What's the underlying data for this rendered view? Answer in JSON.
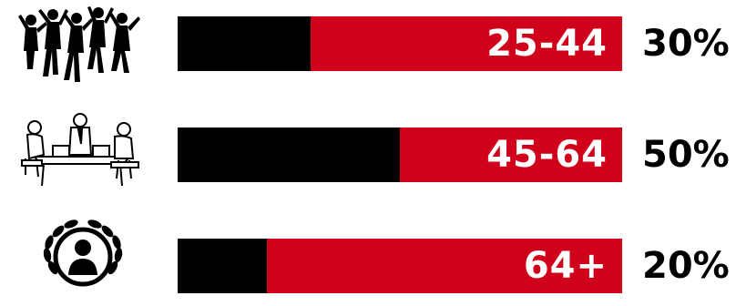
{
  "chart_data": {
    "type": "bar",
    "categories": [
      "25-44",
      "45-64",
      "64+"
    ],
    "values": [
      30,
      50,
      20
    ],
    "value_labels": [
      "30%",
      "50%",
      "20%"
    ],
    "unit": "%",
    "bar_fill_fraction": [
      0.3,
      0.5,
      0.2
    ],
    "colors": {
      "fill": "#000000",
      "track": "#d0021b",
      "label": "#ffffff",
      "value": "#000000"
    }
  },
  "icons": [
    "jumping-crowd-icon",
    "office-meeting-icon",
    "laurel-person-icon"
  ]
}
